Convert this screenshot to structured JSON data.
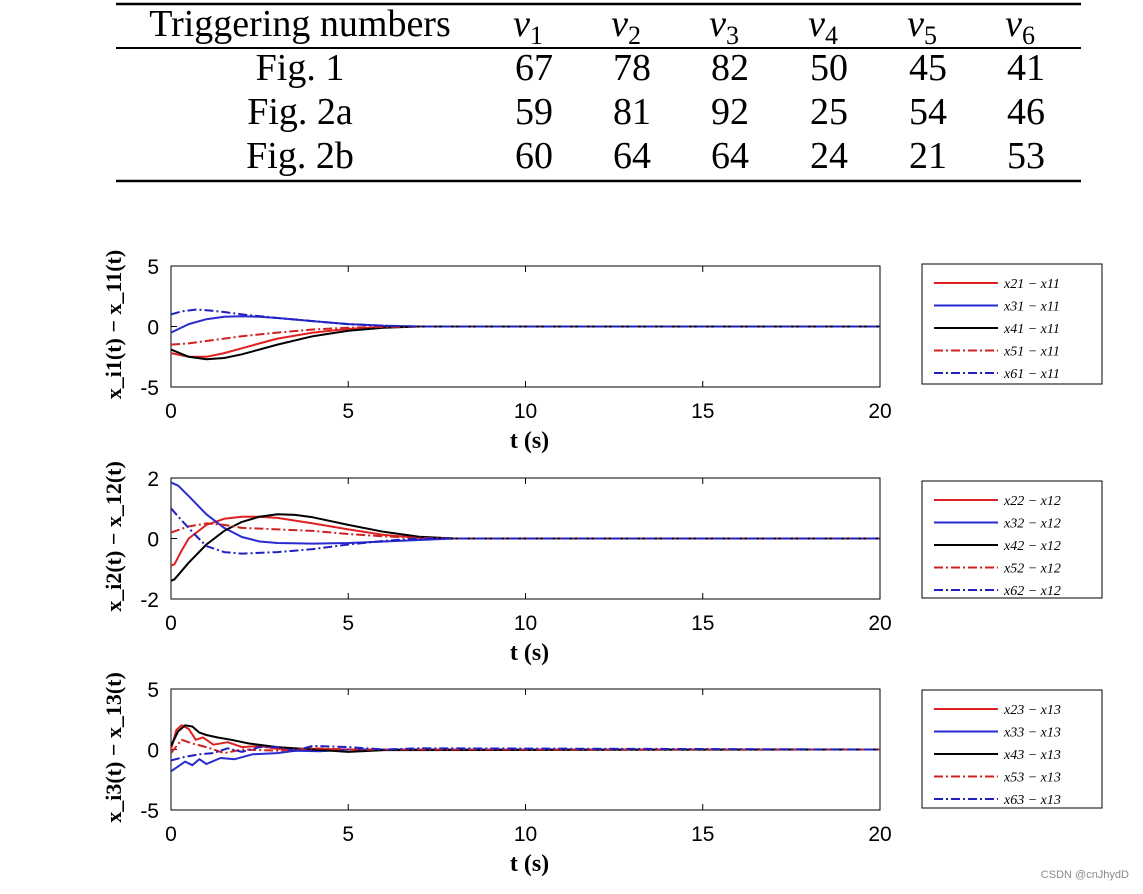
{
  "table": {
    "header": [
      "Triggering numbers",
      "v",
      "v",
      "v",
      "v",
      "v",
      "v"
    ],
    "header_subscripts": [
      "",
      "1",
      "2",
      "3",
      "4",
      "5",
      "6"
    ],
    "rows": [
      {
        "label": "Fig. 1",
        "values": [
          "67",
          "78",
          "82",
          "50",
          "45",
          "41"
        ]
      },
      {
        "label": "Fig. 2a",
        "values": [
          "59",
          "81",
          "92",
          "25",
          "54",
          "46"
        ]
      },
      {
        "label": "Fig. 2b",
        "values": [
          "60",
          "64",
          "64",
          "24",
          "21",
          "53"
        ]
      }
    ]
  },
  "chart_data": [
    {
      "type": "line",
      "xlabel": "t (s)",
      "ylabel": "x_i1(t) − x_11(t)",
      "xlim": [
        0,
        20
      ],
      "ylim": [
        -5,
        5
      ],
      "xticks": [
        "0",
        "5",
        "10",
        "15",
        "20"
      ],
      "yticks": [
        "5",
        "0",
        "-5"
      ],
      "legend_position": "right",
      "series": [
        {
          "name": "x21 − x11",
          "color": "#e02020",
          "dash": "solid",
          "x": [
            0,
            0.5,
            1,
            1.5,
            2,
            2.5,
            3,
            4,
            5,
            6,
            7,
            8,
            20
          ],
          "y": [
            -2.2,
            -2.5,
            -2.5,
            -2.2,
            -1.8,
            -1.4,
            -1.0,
            -0.5,
            -0.2,
            -0.05,
            0,
            0,
            0
          ]
        },
        {
          "name": "x31 − x11",
          "color": "#2a2ad0",
          "dash": "solid",
          "x": [
            0,
            0.5,
            1,
            1.5,
            2,
            2.5,
            3,
            4,
            5,
            6,
            7,
            8,
            20
          ],
          "y": [
            -0.5,
            0.2,
            0.6,
            0.8,
            0.85,
            0.8,
            0.7,
            0.45,
            0.2,
            0.07,
            0,
            0,
            0
          ]
        },
        {
          "name": "x41 − x11",
          "color": "#000000",
          "dash": "solid",
          "x": [
            0,
            0.5,
            1,
            1.5,
            2,
            2.5,
            3,
            4,
            5,
            6,
            7,
            8,
            20
          ],
          "y": [
            -1.9,
            -2.5,
            -2.7,
            -2.6,
            -2.3,
            -1.9,
            -1.5,
            -0.8,
            -0.35,
            -0.1,
            0,
            0,
            0
          ]
        },
        {
          "name": "x51 − x11",
          "color": "#d02020",
          "dash": "dashdot",
          "x": [
            0,
            0.5,
            1,
            1.5,
            2,
            3,
            4,
            5,
            6,
            7,
            8,
            20
          ],
          "y": [
            -1.5,
            -1.4,
            -1.2,
            -1.0,
            -0.8,
            -0.5,
            -0.25,
            -0.1,
            -0.03,
            0,
            0,
            0
          ]
        },
        {
          "name": "x61 − x11",
          "color": "#2020c0",
          "dash": "dashdot",
          "x": [
            0,
            0.3,
            0.7,
            1,
            1.5,
            2,
            3,
            4,
            5,
            6,
            7,
            8,
            20
          ],
          "y": [
            1.0,
            1.25,
            1.4,
            1.35,
            1.2,
            1.0,
            0.7,
            0.45,
            0.2,
            0.07,
            0,
            0,
            0
          ]
        }
      ]
    },
    {
      "type": "line",
      "xlabel": "t (s)",
      "ylabel": "x_i2(t) − x_12(t)",
      "xlim": [
        0,
        20
      ],
      "ylim": [
        -2,
        2
      ],
      "xticks": [
        "0",
        "5",
        "10",
        "15",
        "20"
      ],
      "yticks": [
        "2",
        "0",
        "-2"
      ],
      "legend_position": "right",
      "series": [
        {
          "name": "x22 − x12",
          "color": "#e02020",
          "dash": "solid",
          "x": [
            0,
            0.1,
            0.3,
            0.5,
            1,
            1.5,
            2,
            2.5,
            3,
            4,
            5,
            6,
            7,
            8,
            20
          ],
          "y": [
            -0.9,
            -0.85,
            -0.4,
            0.0,
            0.45,
            0.65,
            0.72,
            0.72,
            0.68,
            0.5,
            0.3,
            0.12,
            0.02,
            0,
            0
          ]
        },
        {
          "name": "x32 − x12",
          "color": "#2a2ad0",
          "dash": "solid",
          "x": [
            0,
            0.2,
            0.5,
            1,
            1.5,
            2,
            2.5,
            3,
            4,
            5,
            6,
            7,
            8,
            20
          ],
          "y": [
            1.85,
            1.75,
            1.4,
            0.8,
            0.35,
            0.05,
            -0.1,
            -0.15,
            -0.17,
            -0.15,
            -0.1,
            -0.05,
            0,
            0
          ]
        },
        {
          "name": "x42 − x12",
          "color": "#000000",
          "dash": "solid",
          "x": [
            0,
            0.1,
            0.5,
            1,
            1.5,
            2,
            2.5,
            3,
            3.5,
            4,
            5,
            6,
            7,
            8,
            20
          ],
          "y": [
            -1.4,
            -1.35,
            -0.8,
            -0.2,
            0.25,
            0.55,
            0.72,
            0.8,
            0.78,
            0.7,
            0.45,
            0.22,
            0.06,
            0,
            0
          ]
        },
        {
          "name": "x52 − x12",
          "color": "#d02020",
          "dash": "dashdot",
          "x": [
            0,
            0.5,
            1,
            1.5,
            2,
            3,
            4,
            5,
            6,
            7,
            8,
            20
          ],
          "y": [
            0.2,
            0.4,
            0.5,
            0.45,
            0.35,
            0.3,
            0.25,
            0.15,
            0.07,
            0.02,
            0,
            0
          ]
        },
        {
          "name": "x62 − x12",
          "color": "#2020c0",
          "dash": "dashdot",
          "x": [
            0,
            0.3,
            0.7,
            1,
            1.5,
            2,
            3,
            4,
            5,
            6,
            7,
            8,
            20
          ],
          "y": [
            1.0,
            0.6,
            0.1,
            -0.25,
            -0.45,
            -0.5,
            -0.45,
            -0.35,
            -0.2,
            -0.08,
            0,
            0,
            0
          ]
        }
      ]
    },
    {
      "type": "line",
      "xlabel": "t (s)",
      "ylabel": "x_i3(t) − x_13(t)",
      "xlim": [
        0,
        20
      ],
      "ylim": [
        -5,
        5
      ],
      "xticks": [
        "0",
        "5",
        "10",
        "15",
        "20"
      ],
      "yticks": [
        "5",
        "0",
        "-5"
      ],
      "legend_position": "right",
      "series": [
        {
          "name": "x23 − x13",
          "color": "#e02020",
          "dash": "solid",
          "x": [
            0,
            0.15,
            0.3,
            0.5,
            0.7,
            0.9,
            1.2,
            1.6,
            2,
            2.5,
            3,
            4,
            5,
            20
          ],
          "y": [
            0,
            1.6,
            2.0,
            1.7,
            0.8,
            1.0,
            0.4,
            0.6,
            0.2,
            0.3,
            0.05,
            0.05,
            0,
            0
          ]
        },
        {
          "name": "x33 − x13",
          "color": "#2a2ad0",
          "dash": "solid",
          "x": [
            0,
            0.2,
            0.4,
            0.6,
            0.8,
            1,
            1.4,
            1.8,
            2.3,
            3,
            3.5,
            4.2,
            5,
            6,
            20
          ],
          "y": [
            -1.8,
            -1.4,
            -1.0,
            -1.3,
            -0.8,
            -1.2,
            -0.7,
            -0.8,
            -0.4,
            -0.3,
            -0.1,
            -0.15,
            0,
            0,
            0
          ]
        },
        {
          "name": "x43 − x13",
          "color": "#000000",
          "dash": "solid",
          "x": [
            0,
            0.2,
            0.4,
            0.6,
            0.8,
            1,
            1.3,
            1.7,
            2.2,
            3,
            4,
            5,
            6,
            20
          ],
          "y": [
            0.3,
            1.5,
            2.0,
            1.9,
            1.4,
            1.2,
            1.0,
            0.8,
            0.5,
            0.2,
            0,
            -0.2,
            -0.05,
            0
          ]
        },
        {
          "name": "x53 − x13",
          "color": "#d02020",
          "dash": "dashdot",
          "x": [
            0,
            0.3,
            0.6,
            1,
            1.5,
            2,
            3,
            4,
            5,
            20
          ],
          "y": [
            -0.3,
            0.8,
            0.5,
            0.2,
            -0.3,
            0.0,
            -0.1,
            0.1,
            0,
            0
          ]
        },
        {
          "name": "x63 − x13",
          "color": "#2020c0",
          "dash": "dashdot",
          "x": [
            0,
            0.4,
            0.8,
            1.2,
            1.6,
            2,
            2.5,
            3,
            3.5,
            4,
            5,
            6,
            7,
            20
          ],
          "y": [
            -0.9,
            -0.6,
            -0.4,
            -0.3,
            0.1,
            -0.2,
            0.2,
            0.2,
            -0.1,
            0.3,
            0.2,
            0.0,
            0.1,
            0
          ]
        }
      ]
    }
  ],
  "watermark": "CSDN @cnJhydD"
}
